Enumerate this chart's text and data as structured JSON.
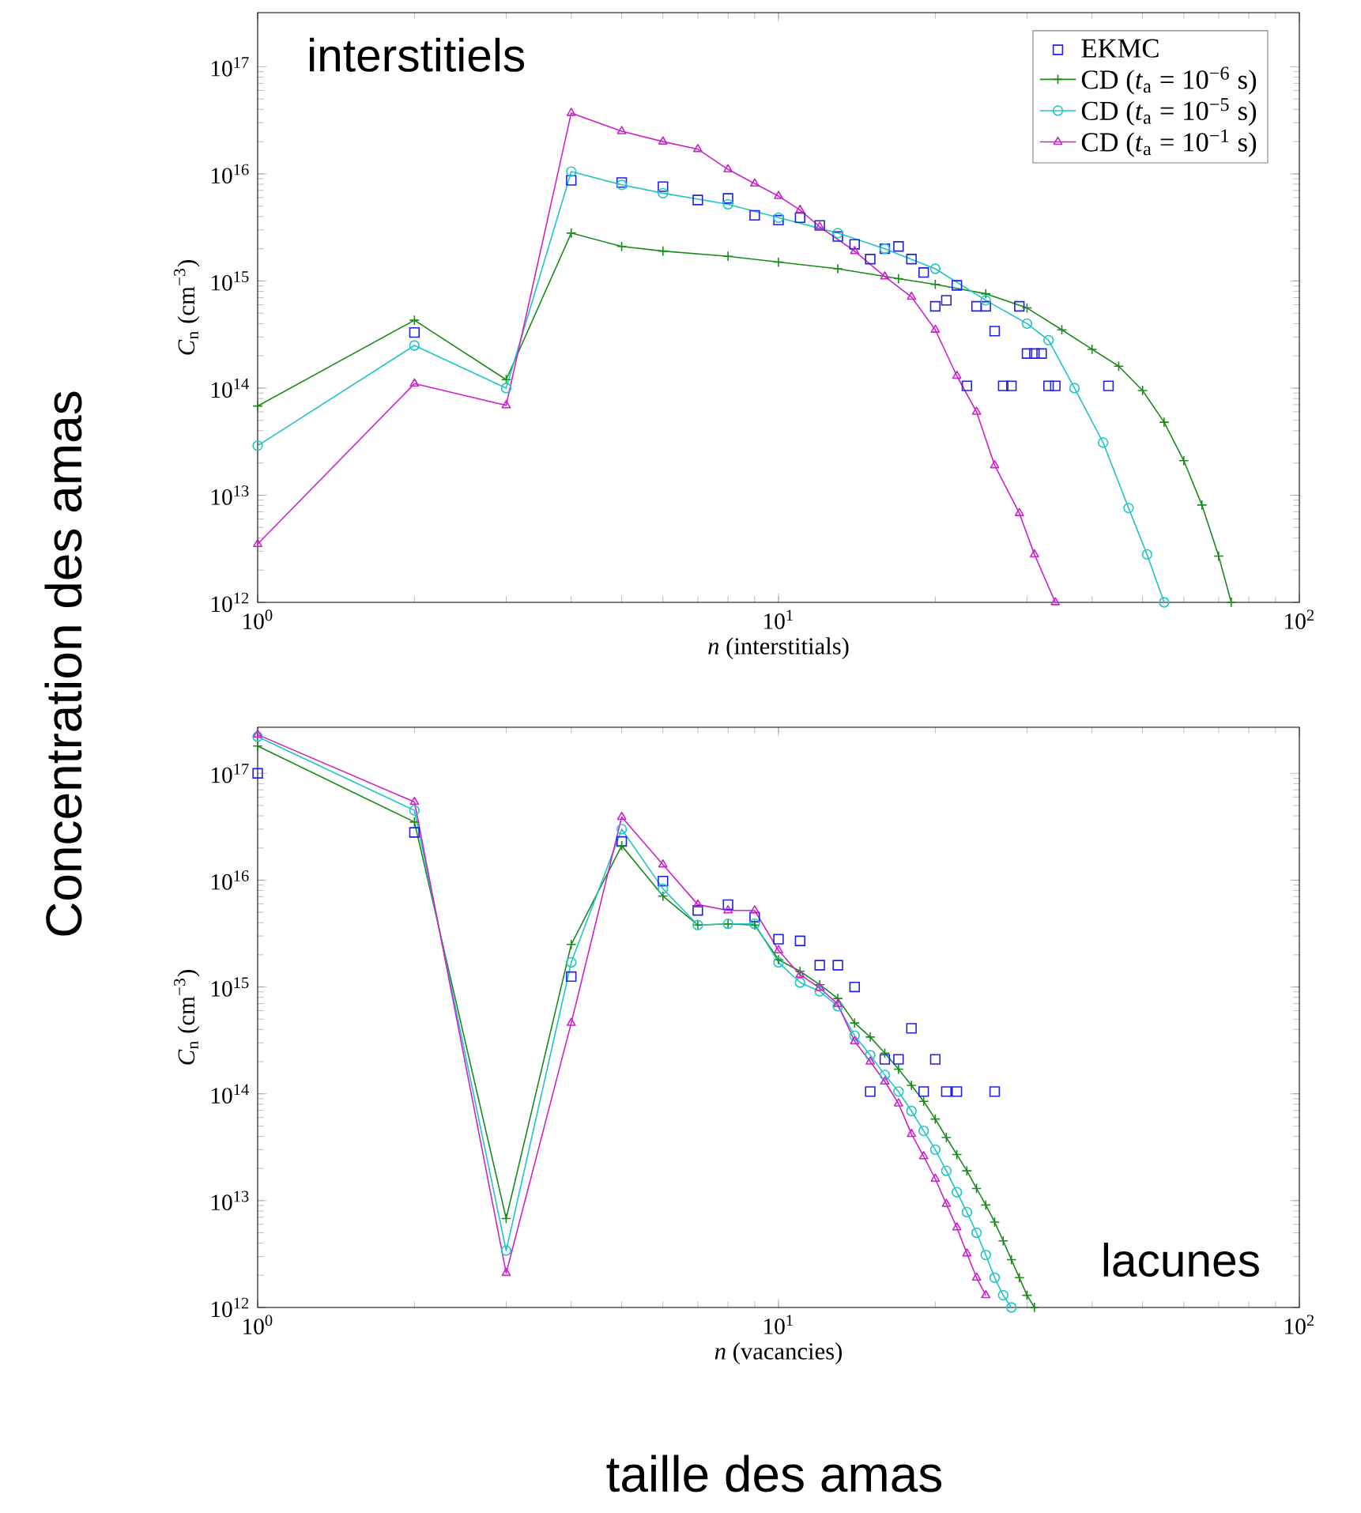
{
  "chart_data": [
    {
      "type": "line",
      "xlabel": "*n* (interstitials)",
      "ylabel": "*C*$_{n}$ (cm$^{−3}$)",
      "log": "xy",
      "legend": "top right",
      "xlim": [
        1,
        100
      ],
      "ylim": [
        1000000000000.0,
        3.2e+17
      ],
      "xticks": [
        {
          "value": 1,
          "label": "10$^{0}$"
        },
        {
          "value": 10,
          "label": "10$^{1}$"
        },
        {
          "value": 100,
          "label": "10$^{2}$"
        }
      ],
      "yticks": [
        {
          "value": 1000000000000.0,
          "label": "10$^{12}$"
        },
        {
          "value": 10000000000000.0,
          "label": "10$^{13}$"
        },
        {
          "value": 100000000000000.0,
          "label": "10$^{14}$"
        },
        {
          "value": 1000000000000000.0,
          "label": "10$^{15}$"
        },
        {
          "value": 1e+16,
          "label": "10$^{16}$"
        },
        {
          "value": 1e+17,
          "label": "10$^{17}$"
        }
      ],
      "annotations": [
        "interstitiels",
        "Concentration des amas"
      ],
      "series": [
        {
          "name": "EKMC",
          "type": "scatter",
          "marker": "square",
          "color": "#2020e8",
          "x": [
            2,
            4,
            5,
            6,
            7,
            8,
            9,
            10,
            11,
            12,
            13,
            14,
            15,
            16,
            17,
            18,
            19,
            20,
            21,
            22,
            23,
            24,
            25,
            26,
            27,
            28,
            29,
            30,
            31,
            32,
            33,
            34,
            43
          ],
          "values": [
            330000000000000.0,
            8700000000000000.0,
            8300000000000000.0,
            7600000000000000.0,
            5700000000000000.0,
            5900000000000000.0,
            4100000000000000.0,
            3700000000000000.0,
            3900000000000000.0,
            3300000000000000.0,
            2600000000000000.0,
            2200000000000000.0,
            1600000000000000.0,
            2000000000000000.0,
            2100000000000000.0,
            1600000000000000.0,
            1200000000000000.0,
            580000000000000.0,
            660000000000000.0,
            910000000000000.0,
            105000000000000.0,
            580000000000000.0,
            580000000000000.0,
            340000000000000.0,
            105000000000000.0,
            105000000000000.0,
            580000000000000.0,
            210000000000000.0,
            210000000000000.0,
            210000000000000.0,
            105000000000000.0,
            105000000000000.0,
            105000000000000.0
          ]
        },
        {
          "name": "CD (*t*$_{a}$ = 10$^{−6}$ s)",
          "marker": "cross",
          "line_style": "solid",
          "color": "#1a8a1a",
          "x": [
            1,
            2,
            3,
            4,
            5,
            6,
            8,
            10,
            13,
            17,
            20,
            25,
            30,
            35,
            40,
            45,
            50,
            55,
            60,
            65,
            70,
            74
          ],
          "values": [
            68000000000000.0,
            430000000000000.0,
            120000000000000.0,
            2800000000000000.0,
            2100000000000000.0,
            1900000000000000.0,
            1700000000000000.0,
            1500000000000000.0,
            1300000000000000.0,
            1050000000000000.0,
            930000000000000.0,
            760000000000000.0,
            560000000000000.0,
            350000000000000.0,
            230000000000000.0,
            160000000000000.0,
            95000000000000.0,
            48000000000000.0,
            21000000000000.0,
            8100000000000.0,
            2700000000000.0,
            1000000000000.0
          ]
        },
        {
          "name": "CD (*t*$_{a}$ = 10$^{−5}$ s)",
          "marker": "circle",
          "line_style": "solid",
          "color": "#22c4c4",
          "x": [
            1,
            2,
            3,
            4,
            5,
            6,
            8,
            10,
            13,
            16,
            20,
            25,
            30,
            33,
            37,
            42,
            47,
            51,
            55
          ],
          "values": [
            29000000000000.0,
            250000000000000.0,
            100000000000000.0,
            1.05e+16,
            7900000000000000.0,
            6600000000000000.0,
            5200000000000000.0,
            3900000000000000.0,
            2800000000000000.0,
            2000000000000000.0,
            1300000000000000.0,
            660000000000000.0,
            400000000000000.0,
            280000000000000.0,
            100000000000000.0,
            31000000000000.0,
            7600000000000.0,
            2800000000000.0,
            1000000000000.0
          ]
        },
        {
          "name": "CD (*t*$_{a}$ = 10$^{−1}$ s)",
          "marker": "triangle",
          "line_style": "solid",
          "color": "#cc22cc",
          "x": [
            1,
            2,
            3,
            4,
            5,
            6,
            7,
            8,
            9,
            10,
            11,
            12,
            14,
            16,
            18,
            20,
            22,
            24,
            26,
            29,
            31,
            34
          ],
          "values": [
            3500000000000.0,
            110000000000000.0,
            69000000000000.0,
            3.7e+16,
            2.5e+16,
            2e+16,
            1.7e+16,
            1.1e+16,
            8100000000000000.0,
            6200000000000000.0,
            4600000000000000.0,
            3200000000000000.0,
            1900000000000000.0,
            1100000000000000.0,
            710000000000000.0,
            350000000000000.0,
            130000000000000.0,
            60000000000000.0,
            19000000000000.0,
            6800000000000.0,
            2800000000000.0,
            1000000000000.0
          ]
        }
      ]
    },
    {
      "type": "line",
      "xlabel": "*n* (vacancies)",
      "ylabel": "*C*$_{n}$ (cm$^{−3}$)",
      "log": "xy",
      "xlim": [
        1,
        100
      ],
      "ylim": [
        1000000000000.0,
        2.7e+17
      ],
      "xticks": [
        {
          "value": 1,
          "label": "10$^{0}$"
        },
        {
          "value": 10,
          "label": "10$^{1}$"
        },
        {
          "value": 100,
          "label": "10$^{2}$"
        }
      ],
      "yticks": [
        {
          "value": 1000000000000.0,
          "label": "10$^{12}$"
        },
        {
          "value": 10000000000000.0,
          "label": "10$^{13}$"
        },
        {
          "value": 100000000000000.0,
          "label": "10$^{14}$"
        },
        {
          "value": 1000000000000000.0,
          "label": "10$^{15}$"
        },
        {
          "value": 1e+16,
          "label": "10$^{16}$"
        },
        {
          "value": 1e+17,
          "label": "10$^{17}$"
        }
      ],
      "annotations": [
        "lacunes",
        "taille des amas"
      ],
      "series": [
        {
          "type": "scatter",
          "marker": "square",
          "color": "#2020e8",
          "x": [
            1,
            2,
            4,
            5,
            6,
            7,
            8,
            9,
            10,
            11,
            12,
            13,
            14,
            15,
            16,
            17,
            18,
            19,
            20,
            21,
            22,
            26
          ],
          "values": [
            1e+17,
            2.8e+16,
            1250000000000000.0,
            2.3e+16,
            9800000000000000.0,
            5200000000000000.0,
            5900000000000000.0,
            4500000000000000.0,
            2800000000000000.0,
            2700000000000000.0,
            1600000000000000.0,
            1600000000000000.0,
            1000000000000000.0,
            105000000000000.0,
            210000000000000.0,
            210000000000000.0,
            410000000000000.0,
            105000000000000.0,
            210000000000000.0,
            105000000000000.0,
            105000000000000.0,
            105000000000000.0
          ]
        },
        {
          "marker": "cross",
          "line_style": "solid",
          "color": "#1a8a1a",
          "x": [
            1,
            2,
            3,
            4,
            5,
            6,
            7,
            8,
            9,
            10,
            11,
            12,
            13,
            14,
            15,
            16,
            17,
            18,
            19,
            20,
            21,
            22,
            23,
            24,
            25,
            26,
            27,
            28,
            29,
            30,
            31
          ],
          "values": [
            1.8e+17,
            3.5e+16,
            6800000000000.0,
            2500000000000000.0,
            2.1e+16,
            7100000000000000.0,
            3800000000000000.0,
            3900000000000000.0,
            3800000000000000.0,
            1800000000000000.0,
            1400000000000000.0,
            1050000000000000.0,
            780000000000000.0,
            460000000000000.0,
            340000000000000.0,
            240000000000000.0,
            170000000000000.0,
            120000000000000.0,
            85000000000000.0,
            58000000000000.0,
            39000000000000.0,
            27000000000000.0,
            19000000000000.0,
            13000000000000.0,
            9100000000000.0,
            6300000000000.0,
            4200000000000.0,
            2800000000000.0,
            1900000000000.0,
            1300000000000.0,
            1000000000000.0
          ]
        },
        {
          "marker": "circle",
          "line_style": "solid",
          "color": "#22c4c4",
          "x": [
            1,
            2,
            3,
            4,
            5,
            6,
            7,
            8,
            9,
            10,
            11,
            12,
            13,
            14,
            15,
            16,
            17,
            18,
            19,
            20,
            21,
            22,
            23,
            24,
            25,
            26,
            27,
            28
          ],
          "values": [
            2.2e+17,
            4.5e+16,
            3400000000000.0,
            1700000000000000.0,
            3e+16,
            8300000000000000.0,
            3800000000000000.0,
            3900000000000000.0,
            3900000000000000.0,
            1700000000000000.0,
            1100000000000000.0,
            910000000000000.0,
            660000000000000.0,
            350000000000000.0,
            230000000000000.0,
            150000000000000.0,
            105000000000000.0,
            69000000000000.0,
            45000000000000.0,
            30000000000000.0,
            19000000000000.0,
            12000000000000.0,
            7800000000000.0,
            5000000000000.0,
            3100000000000.0,
            1900000000000.0,
            1300000000000.0,
            1000000000000.0
          ]
        },
        {
          "marker": "triangle",
          "line_style": "solid",
          "color": "#cc22cc",
          "x": [
            1,
            2,
            3,
            4,
            5,
            6,
            7,
            8,
            9,
            10,
            11,
            12,
            13,
            14,
            15,
            16,
            17,
            18,
            19,
            20,
            21,
            22,
            23,
            24,
            25
          ],
          "values": [
            2.3e+17,
            5.4e+16,
            2100000000000.0,
            460000000000000.0,
            3.9e+16,
            1.4e+16,
            5900000000000000.0,
            5200000000000000.0,
            5200000000000000.0,
            2200000000000000.0,
            1300000000000000.0,
            980000000000000.0,
            690000000000000.0,
            310000000000000.0,
            200000000000000.0,
            130000000000000.0,
            81000000000000.0,
            42000000000000.0,
            26000000000000.0,
            16000000000000.0,
            9300000000000.0,
            5600000000000.0,
            3200000000000.0,
            1900000000000.0,
            1300000000000.0
          ]
        }
      ]
    }
  ]
}
